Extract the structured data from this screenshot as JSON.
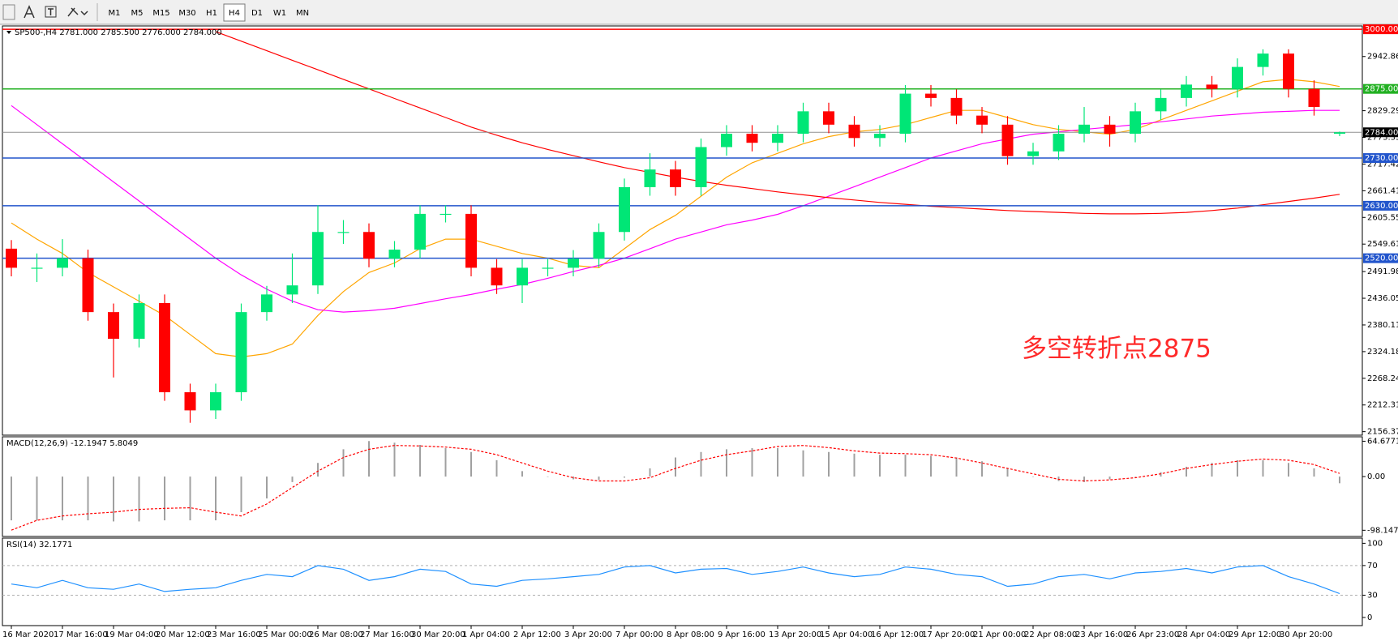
{
  "toolbar": {
    "timeframes": [
      "M1",
      "M5",
      "M15",
      "M30",
      "H1",
      "H4",
      "D1",
      "W1",
      "MN"
    ],
    "active": "H4"
  },
  "chart_data": [
    {
      "type": "candlestick",
      "title": "SP500-,H4  2781.000 2785.500 2776.000 2784.000",
      "annotation": "多空转折点2875",
      "categories": [
        "16 Mar 2020",
        null,
        "17 Mar 16:00",
        null,
        "19 Mar 04:00",
        null,
        "20 Mar 12:00",
        null,
        "23 Mar 16:00",
        null,
        "25 Mar 00:00",
        null,
        "26 Mar 08:00",
        null,
        "27 Mar 16:00",
        null,
        "30 Mar 20:00",
        null,
        "1 Apr 04:00",
        null,
        "2 Apr 12:00",
        null,
        "3 Apr 20:00",
        null,
        "7 Apr 00:00",
        null,
        "8 Apr 08:00",
        null,
        "9 Apr 16:00",
        null,
        "13 Apr 20:00",
        null,
        "15 Apr 04:00",
        null,
        "16 Apr 12:00",
        null,
        "17 Apr 20:00",
        null,
        "21 Apr 00:00",
        null,
        "22 Apr 08:00",
        null,
        "23 Apr 16:00",
        null,
        "26 Apr 23:00",
        null,
        "28 Apr 04:00",
        null,
        "29 Apr 12:00",
        null,
        "30 Apr 20:00",
        null,
        null
      ],
      "open": [
        2540,
        2500,
        2500,
        2520,
        2407,
        2351,
        2426,
        2239,
        2201,
        2239,
        2407,
        2444,
        2463,
        2575,
        2575,
        2519,
        2538,
        2613,
        2613,
        2500,
        2463,
        2500,
        2500,
        2519,
        2575,
        2669,
        2706,
        2669,
        2753,
        2781,
        2762,
        2781,
        2828,
        2800,
        2772,
        2781,
        2865,
        2856,
        2819,
        2800,
        2734,
        2744,
        2781,
        2800,
        2781,
        2828,
        2856,
        2884,
        2875,
        2921,
        2949,
        2875,
        2781
      ],
      "high": [
        2558,
        2530,
        2560,
        2538,
        2425,
        2444,
        2444,
        2257,
        2257,
        2425,
        2462,
        2530,
        2631,
        2600,
        2593,
        2556,
        2631,
        2631,
        2631,
        2518,
        2518,
        2518,
        2537,
        2593,
        2687,
        2740,
        2724,
        2771,
        2799,
        2799,
        2799,
        2846,
        2846,
        2818,
        2799,
        2883,
        2883,
        2874,
        2837,
        2818,
        2762,
        2799,
        2837,
        2818,
        2846,
        2874,
        2902,
        2902,
        2939,
        2958,
        2958,
        2893,
        2785.5
      ],
      "low": [
        2482,
        2470,
        2482,
        2389,
        2270,
        2333,
        2221,
        2175,
        2183,
        2221,
        2389,
        2426,
        2445,
        2550,
        2501,
        2501,
        2520,
        2595,
        2482,
        2445,
        2426,
        2482,
        2482,
        2501,
        2557,
        2651,
        2651,
        2651,
        2735,
        2744,
        2744,
        2763,
        2782,
        2754,
        2754,
        2763,
        2838,
        2801,
        2782,
        2716,
        2716,
        2726,
        2763,
        2754,
        2763,
        2810,
        2838,
        2857,
        2857,
        2903,
        2857,
        2819,
        2776
      ],
      "close": [
        2500,
        2500,
        2520,
        2407,
        2351,
        2426,
        2239,
        2201,
        2239,
        2407,
        2444,
        2463,
        2575,
        2575,
        2519,
        2538,
        2613,
        2613,
        2500,
        2463,
        2500,
        2500,
        2519,
        2575,
        2669,
        2706,
        2669,
        2753,
        2781,
        2762,
        2781,
        2828,
        2800,
        2772,
        2781,
        2865,
        2856,
        2819,
        2800,
        2734,
        2744,
        2781,
        2800,
        2781,
        2828,
        2856,
        2884,
        2875,
        2921,
        2949,
        2875,
        2837,
        2784
      ],
      "up_color": "#00e676",
      "down_color": "#ff0000",
      "series": [
        {
          "color": "#ffa500",
          "values": [
            2594,
            2560,
            2530,
            2490,
            2460,
            2430,
            2400,
            2360,
            2320,
            2313,
            2320,
            2340,
            2400,
            2450,
            2490,
            2510,
            2540,
            2560,
            2560,
            2545,
            2530,
            2520,
            2505,
            2500,
            2540,
            2580,
            2610,
            2650,
            2690,
            2720,
            2740,
            2760,
            2775,
            2785,
            2790,
            2800,
            2815,
            2830,
            2830,
            2815,
            2800,
            2790,
            2785,
            2780,
            2790,
            2810,
            2830,
            2850,
            2870,
            2890,
            2895,
            2890,
            2880
          ]
        },
        {
          "color": "#ff00ff",
          "values": [
            2840,
            2800,
            2760,
            2720,
            2680,
            2640,
            2600,
            2560,
            2520,
            2485,
            2455,
            2430,
            2412,
            2407,
            2410,
            2415,
            2425,
            2435,
            2444,
            2455,
            2465,
            2478,
            2492,
            2505,
            2520,
            2540,
            2560,
            2575,
            2590,
            2600,
            2612,
            2630,
            2650,
            2670,
            2690,
            2710,
            2730,
            2745,
            2760,
            2770,
            2780,
            2785,
            2790,
            2795,
            2800,
            2806,
            2812,
            2818,
            2822,
            2826,
            2828,
            2830,
            2830
          ]
        },
        {
          "color": "#ff0000",
          "values": [
            null,
            null,
            null,
            null,
            null,
            null,
            null,
            null,
            2995,
            2975,
            2955,
            2935,
            2915,
            2895,
            2875,
            2855,
            2835,
            2815,
            2795,
            2778,
            2762,
            2748,
            2735,
            2722,
            2710,
            2700,
            2690,
            2681,
            2673,
            2666,
            2659,
            2653,
            2647,
            2642,
            2637,
            2633,
            2629,
            2626,
            2623,
            2620,
            2618,
            2616,
            2614,
            2613,
            2613,
            2614,
            2616,
            2620,
            2625,
            2632,
            2639,
            2646,
            2654
          ]
        }
      ],
      "hlines": [
        {
          "value": 3000,
          "label": "3000.000",
          "color": "#ff0000"
        },
        {
          "value": 2875,
          "label": "2875.000",
          "color": "#22b022"
        },
        {
          "value": 2784,
          "label": "2784.000",
          "color": "#000000"
        },
        {
          "value": 2730,
          "label": "2730.000",
          "color": "#2255cc"
        },
        {
          "value": 2630,
          "label": "2630.000",
          "color": "#2255cc"
        },
        {
          "value": 2520,
          "label": "2520.000",
          "color": "#2255cc"
        }
      ],
      "ylim": [
        2149,
        3007
      ],
      "yticks": [
        2942.865,
        {
          "value": 2829.29,
          "label": "2829.290"
        },
        2773.355,
        {
          "value": 2717.42,
          "label": "2717.420"
        },
        2661.415,
        2605.555,
        2549.615,
        2491.985,
        {
          "value": 2436.05,
          "label": "2436.050"
        },
        2380.115,
        {
          "value": 2324.18,
          "label": "2324.180"
        },
        2268.245,
        {
          "value": 2212.31,
          "label": "2212.310"
        },
        2156.375
      ]
    },
    {
      "type": "macd",
      "title": "MACD(12,26,9) -12.1947 5.8049",
      "values": [
        -80,
        -80,
        -80,
        -80,
        -82,
        -82,
        -80,
        -80,
        -80,
        -65,
        -40,
        -10,
        25,
        50,
        65,
        62,
        58,
        52,
        45,
        30,
        10,
        0,
        -5,
        -6,
        -2,
        15,
        35,
        45,
        50,
        52,
        52,
        48,
        45,
        42,
        40,
        40,
        38,
        35,
        28,
        15,
        0,
        -8,
        -10,
        -5,
        0,
        8,
        18,
        25,
        30,
        30,
        25,
        15,
        -12.1947
      ],
      "signal": [
        -98,
        -80,
        -72,
        -68,
        -65,
        -60,
        -58,
        -57,
        -65,
        -72,
        -50,
        -20,
        10,
        35,
        50,
        57,
        56,
        54,
        50,
        40,
        25,
        10,
        -2,
        -8,
        -8,
        -2,
        15,
        30,
        40,
        47,
        55,
        57,
        53,
        47,
        43,
        42,
        40,
        34,
        25,
        15,
        5,
        -5,
        -8,
        -6,
        -2,
        5,
        15,
        22,
        28,
        32,
        30,
        22,
        5.8049
      ],
      "color": "#a0a0a0",
      "signal_color": "#ff0000",
      "ylim": [
        -109.5,
        72.8
      ],
      "yticks": [
        64.6771,
        {
          "value": 0,
          "label": "0.00"
        },
        -98.1473
      ]
    },
    {
      "type": "line",
      "title": "RSI(14) 32.1771",
      "values": [
        45,
        40,
        50,
        40,
        38,
        45,
        35,
        38,
        40,
        50,
        58,
        55,
        70,
        65,
        50,
        55,
        65,
        62,
        45,
        42,
        50,
        52,
        55,
        58,
        68,
        70,
        60,
        65,
        66,
        58,
        62,
        68,
        60,
        55,
        58,
        68,
        65,
        58,
        55,
        42,
        45,
        55,
        58,
        52,
        60,
        62,
        66,
        60,
        68,
        70,
        55,
        45,
        32.1771
      ],
      "color": "#1e90ff",
      "grid": true,
      "ylim": [
        -11,
        107
      ],
      "yticks": [
        100,
        70,
        30,
        0
      ]
    }
  ]
}
